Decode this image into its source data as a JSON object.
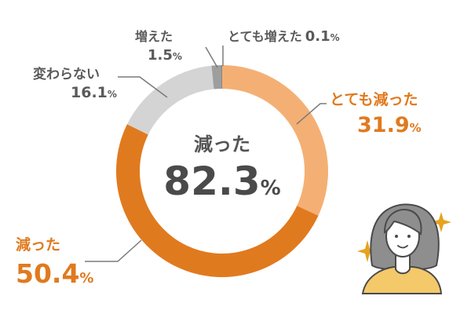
{
  "chart_data": {
    "type": "pie",
    "center_label": "減った",
    "center_value": "82.3",
    "center_unit": "%",
    "slices": [
      {
        "label": "とても減った",
        "value": 31.9,
        "value_text": "31.9",
        "unit": "%",
        "color": "#F4B074"
      },
      {
        "label": "減った",
        "value": 50.4,
        "value_text": "50.4",
        "unit": "%",
        "color": "#E07A1F"
      },
      {
        "label": "変わらない",
        "value": 16.1,
        "value_text": "16.1",
        "unit": "%",
        "color": "#D4D4D4"
      },
      {
        "label": "増えた",
        "value": 1.5,
        "value_text": "1.5",
        "unit": "%",
        "color": "#9E9E9E"
      },
      {
        "label": "とても増えた",
        "value": 0.1,
        "value_text": "0.1",
        "unit": "%",
        "color": "#6E6E6E"
      }
    ]
  },
  "colors": {
    "label_orange": "#E07A1F",
    "label_gray": "#5a5a5a",
    "leader_line": "#7a7a7a",
    "sparkle": "#E5A31E",
    "sweater": "#F4C96A",
    "hair": "#8E8E8E",
    "skin": "#FFFFFF"
  },
  "illustration": {
    "name": "woman-illustration"
  }
}
